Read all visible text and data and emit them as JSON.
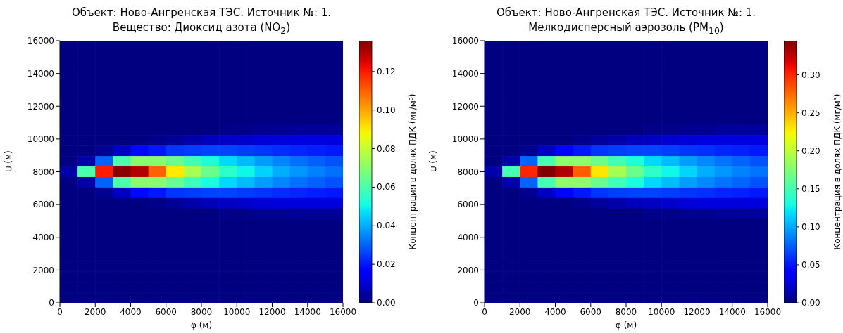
{
  "chart_data": [
    {
      "type": "heatmap",
      "title": "Объект: Ново-Ангренская ТЭС. Источник №: 1.\nВещество: Диоксид азота (NO$_{2}$)",
      "xlabel": "φ (м)",
      "ylabel": "ψ (м)",
      "clabel": "Концентрация в долях ПДК (мг/м³)",
      "x": [
        500,
        1500,
        2500,
        3500,
        4500,
        5500,
        6500,
        7500,
        8500,
        9500,
        10500,
        11500,
        12500,
        13500,
        14500,
        15500
      ],
      "y": [
        15680,
        15040,
        14400,
        13760,
        13120,
        12480,
        11840,
        11200,
        10560,
        9920,
        9280,
        8640,
        8000,
        7360,
        6720,
        6080,
        5440,
        4800,
        4160,
        3520,
        2880,
        2240,
        1600,
        960,
        320
      ],
      "xlim": [
        0,
        16000
      ],
      "xticks": [
        0,
        2000,
        4000,
        6000,
        8000,
        10000,
        12000,
        14000,
        16000
      ],
      "ylim": [
        0,
        16000
      ],
      "yticks": [
        0,
        2000,
        4000,
        6000,
        8000,
        10000,
        12000,
        14000,
        16000
      ],
      "clim": [
        0,
        0.136
      ],
      "cticks": [
        {
          "value": 0,
          "label": "0.00"
        },
        {
          "value": 0.02,
          "label": "0.02"
        },
        {
          "value": 0.04,
          "label": "0.04"
        },
        {
          "value": 0.06,
          "label": "0.06"
        },
        {
          "value": 0.08,
          "label": "0.08"
        },
        {
          "value": 0.1,
          "label": "0.10"
        },
        {
          "value": 0.12,
          "label": "0.12"
        }
      ],
      "cells": [
        [
          0,
          0,
          0,
          0,
          0,
          0,
          0,
          0,
          0,
          0,
          0,
          0,
          0,
          0,
          0,
          0
        ],
        [
          0,
          0,
          0,
          0,
          0,
          0,
          0,
          0,
          0,
          0,
          0,
          0,
          0,
          0,
          0,
          0
        ],
        [
          0,
          0,
          0,
          0,
          0,
          0,
          0,
          0,
          0,
          0,
          0,
          0,
          0,
          0,
          0,
          0
        ],
        [
          0,
          0,
          0,
          0,
          0,
          0,
          0,
          0,
          0,
          0,
          0,
          0,
          0,
          0,
          0,
          0
        ],
        [
          0,
          0,
          0,
          0,
          0,
          0,
          0,
          0,
          0,
          0,
          0,
          0,
          0,
          0,
          0,
          0
        ],
        [
          0,
          0,
          0,
          0,
          0,
          0,
          0,
          0,
          0,
          0,
          0,
          0,
          0,
          0,
          0,
          0
        ],
        [
          0,
          0,
          0,
          0,
          0,
          0,
          0,
          0,
          0,
          0,
          0,
          0,
          0,
          0,
          0,
          0
        ],
        [
          0,
          0,
          0,
          0,
          0,
          0,
          0,
          0,
          0,
          0,
          0,
          0,
          0,
          0,
          0,
          0
        ],
        [
          0,
          0,
          0,
          0,
          0,
          0,
          0,
          0,
          0,
          0.001,
          0.001,
          0.002,
          0.002,
          0.003,
          0.003,
          0.003
        ],
        [
          0,
          0,
          0,
          0,
          0,
          0.001,
          0.003,
          0.005,
          0.007,
          0.008,
          0.009,
          0.01,
          0.011,
          0.011,
          0.011,
          0.011
        ],
        [
          0,
          0,
          0.002,
          0.008,
          0.018,
          0.02,
          0.024,
          0.025,
          0.026,
          0.026,
          0.025,
          0.024,
          0.023,
          0.022,
          0.021,
          0.02
        ],
        [
          0,
          0.005,
          0.03,
          0.06,
          0.07,
          0.07,
          0.065,
          0.058,
          0.052,
          0.046,
          0.042,
          0.038,
          0.035,
          0.032,
          0.03,
          0.028
        ],
        [
          0.005,
          0.06,
          0.12,
          0.135,
          0.13,
          0.11,
          0.09,
          0.075,
          0.065,
          0.055,
          0.05,
          0.045,
          0.04,
          0.037,
          0.034,
          0.032
        ],
        [
          0,
          0.005,
          0.03,
          0.06,
          0.07,
          0.07,
          0.065,
          0.058,
          0.052,
          0.046,
          0.042,
          0.038,
          0.035,
          0.032,
          0.03,
          0.028
        ],
        [
          0,
          0,
          0.002,
          0.008,
          0.018,
          0.02,
          0.024,
          0.025,
          0.026,
          0.026,
          0.025,
          0.024,
          0.023,
          0.022,
          0.021,
          0.02
        ],
        [
          0,
          0,
          0,
          0,
          0,
          0.001,
          0.003,
          0.005,
          0.007,
          0.008,
          0.009,
          0.01,
          0.011,
          0.011,
          0.011,
          0.011
        ],
        [
          0,
          0,
          0,
          0,
          0,
          0,
          0,
          0,
          0,
          0.001,
          0.001,
          0.002,
          0.002,
          0.003,
          0.003,
          0.003
        ],
        [
          0,
          0,
          0,
          0,
          0,
          0,
          0,
          0,
          0,
          0,
          0,
          0,
          0,
          0,
          0,
          0
        ],
        [
          0,
          0,
          0,
          0,
          0,
          0,
          0,
          0,
          0,
          0,
          0,
          0,
          0,
          0,
          0,
          0
        ],
        [
          0,
          0,
          0,
          0,
          0,
          0,
          0,
          0,
          0,
          0,
          0,
          0,
          0,
          0,
          0,
          0
        ],
        [
          0,
          0,
          0,
          0,
          0,
          0,
          0,
          0,
          0,
          0,
          0,
          0,
          0,
          0,
          0,
          0
        ],
        [
          0,
          0,
          0,
          0,
          0,
          0,
          0,
          0,
          0,
          0,
          0,
          0,
          0,
          0,
          0,
          0
        ],
        [
          0,
          0,
          0,
          0,
          0,
          0,
          0,
          0,
          0,
          0,
          0,
          0,
          0,
          0,
          0,
          0
        ],
        [
          0,
          0,
          0,
          0,
          0,
          0,
          0,
          0,
          0,
          0,
          0,
          0,
          0,
          0,
          0,
          0
        ],
        [
          0,
          0,
          0,
          0,
          0,
          0,
          0,
          0,
          0,
          0,
          0,
          0,
          0,
          0,
          0,
          0
        ]
      ]
    },
    {
      "type": "heatmap",
      "title": "Объект: Ново-Ангренская ТЭС. Источник №: 1.\nМелкодисперсный аэрозоль (PM$_{10}$)",
      "xlabel": "φ (м)",
      "ylabel": "ψ (м)",
      "clabel": "Концентрация в долях ПДК (мг/м³)",
      "x": [
        500,
        1500,
        2500,
        3500,
        4500,
        5500,
        6500,
        7500,
        8500,
        9500,
        10500,
        11500,
        12500,
        13500,
        14500,
        15500
      ],
      "y": [
        15680,
        15040,
        14400,
        13760,
        13120,
        12480,
        11840,
        11200,
        10560,
        9920,
        9280,
        8640,
        8000,
        7360,
        6720,
        6080,
        5440,
        4800,
        4160,
        3520,
        2880,
        2240,
        1600,
        960,
        320
      ],
      "xlim": [
        0,
        16000
      ],
      "xticks": [
        0,
        2000,
        4000,
        6000,
        8000,
        10000,
        12000,
        14000,
        16000
      ],
      "ylim": [
        0,
        16000
      ],
      "yticks": [
        0,
        2000,
        4000,
        6000,
        8000,
        10000,
        12000,
        14000,
        16000
      ],
      "clim": [
        0,
        0.345
      ],
      "cticks": [
        {
          "value": 0,
          "label": "0.00"
        },
        {
          "value": 0.05,
          "label": "0.05"
        },
        {
          "value": 0.1,
          "label": "0.10"
        },
        {
          "value": 0.15,
          "label": "0.15"
        },
        {
          "value": 0.2,
          "label": "0.20"
        },
        {
          "value": 0.25,
          "label": "0.25"
        },
        {
          "value": 0.3,
          "label": "0.30"
        }
      ],
      "cells": [
        [
          0,
          0,
          0,
          0,
          0,
          0,
          0,
          0,
          0,
          0,
          0,
          0,
          0,
          0,
          0,
          0
        ],
        [
          0,
          0,
          0,
          0,
          0,
          0,
          0,
          0,
          0,
          0,
          0,
          0,
          0,
          0,
          0,
          0
        ],
        [
          0,
          0,
          0,
          0,
          0,
          0,
          0,
          0,
          0,
          0,
          0,
          0,
          0,
          0,
          0,
          0
        ],
        [
          0,
          0,
          0,
          0,
          0,
          0,
          0,
          0,
          0,
          0,
          0,
          0,
          0,
          0,
          0,
          0
        ],
        [
          0,
          0,
          0,
          0,
          0,
          0,
          0,
          0,
          0,
          0,
          0,
          0,
          0,
          0,
          0,
          0
        ],
        [
          0,
          0,
          0,
          0,
          0,
          0,
          0,
          0,
          0,
          0,
          0,
          0,
          0,
          0,
          0,
          0
        ],
        [
          0,
          0,
          0,
          0,
          0,
          0,
          0,
          0,
          0,
          0,
          0,
          0,
          0,
          0,
          0,
          0
        ],
        [
          0,
          0,
          0,
          0,
          0,
          0,
          0,
          0,
          0,
          0,
          0,
          0,
          0,
          0,
          0,
          0
        ],
        [
          0,
          0,
          0,
          0,
          0,
          0,
          0,
          0,
          0,
          0.003,
          0.003,
          0.005,
          0.005,
          0.008,
          0.008,
          0.008
        ],
        [
          0,
          0,
          0,
          0,
          0,
          0.003,
          0.008,
          0.013,
          0.018,
          0.02,
          0.023,
          0.026,
          0.028,
          0.028,
          0.028,
          0.028
        ],
        [
          0,
          0,
          0.005,
          0.02,
          0.044,
          0.051,
          0.061,
          0.064,
          0.066,
          0.066,
          0.064,
          0.061,
          0.059,
          0.056,
          0.054,
          0.051
        ],
        [
          0,
          0.013,
          0.077,
          0.15,
          0.18,
          0.18,
          0.165,
          0.148,
          0.133,
          0.117,
          0.107,
          0.097,
          0.089,
          0.082,
          0.077,
          0.071
        ],
        [
          0.013,
          0.15,
          0.3,
          0.345,
          0.33,
          0.28,
          0.23,
          0.19,
          0.165,
          0.14,
          0.127,
          0.115,
          0.102,
          0.094,
          0.087,
          0.082
        ],
        [
          0,
          0.013,
          0.077,
          0.15,
          0.18,
          0.18,
          0.165,
          0.148,
          0.133,
          0.117,
          0.107,
          0.097,
          0.089,
          0.082,
          0.077,
          0.071
        ],
        [
          0,
          0,
          0.005,
          0.02,
          0.044,
          0.051,
          0.061,
          0.064,
          0.066,
          0.066,
          0.064,
          0.061,
          0.059,
          0.056,
          0.054,
          0.051
        ],
        [
          0,
          0,
          0,
          0,
          0,
          0.003,
          0.008,
          0.013,
          0.018,
          0.02,
          0.023,
          0.026,
          0.028,
          0.028,
          0.028,
          0.028
        ],
        [
          0,
          0,
          0,
          0,
          0,
          0,
          0,
          0,
          0,
          0.003,
          0.003,
          0.005,
          0.005,
          0.008,
          0.008,
          0.008
        ],
        [
          0,
          0,
          0,
          0,
          0,
          0,
          0,
          0,
          0,
          0,
          0,
          0,
          0,
          0,
          0,
          0
        ],
        [
          0,
          0,
          0,
          0,
          0,
          0,
          0,
          0,
          0,
          0,
          0,
          0,
          0,
          0,
          0,
          0
        ],
        [
          0,
          0,
          0,
          0,
          0,
          0,
          0,
          0,
          0,
          0,
          0,
          0,
          0,
          0,
          0,
          0
        ],
        [
          0,
          0,
          0,
          0,
          0,
          0,
          0,
          0,
          0,
          0,
          0,
          0,
          0,
          0,
          0,
          0
        ],
        [
          0,
          0,
          0,
          0,
          0,
          0,
          0,
          0,
          0,
          0,
          0,
          0,
          0,
          0,
          0,
          0
        ],
        [
          0,
          0,
          0,
          0,
          0,
          0,
          0,
          0,
          0,
          0,
          0,
          0,
          0,
          0,
          0,
          0
        ],
        [
          0,
          0,
          0,
          0,
          0,
          0,
          0,
          0,
          0,
          0,
          0,
          0,
          0,
          0,
          0,
          0
        ],
        [
          0,
          0,
          0,
          0,
          0,
          0,
          0,
          0,
          0,
          0,
          0,
          0,
          0,
          0,
          0,
          0
        ]
      ]
    }
  ]
}
